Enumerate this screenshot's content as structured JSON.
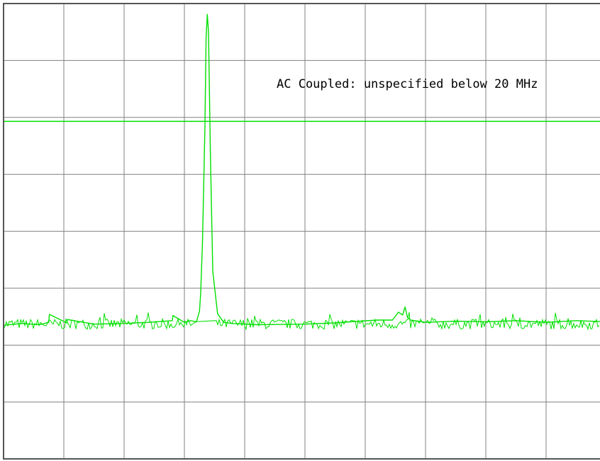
{
  "chart_data": {
    "type": "line",
    "title": "",
    "xlabel": "",
    "ylabel": "",
    "grid": true,
    "grid_divisions": {
      "x": 10,
      "y": 8
    },
    "xlim": [
      0,
      10
    ],
    "ylim": [
      0,
      8
    ],
    "annotation": "AC Coupled: unspecified below 20 MHz",
    "reference_line": {
      "y": 5.93,
      "color": "#00e000"
    },
    "noise_floor": 2.37,
    "noise_amplitude": 0.09,
    "trace_color": "#00e000",
    "grid_color": "#808080",
    "frame_color": "#555555",
    "series": [
      {
        "color": "#00e000",
        "x": [
          0,
          0.3,
          0.6,
          0.75,
          0.76,
          1.05,
          1.06,
          1.5,
          2.0,
          2.4,
          2.8,
          2.81,
          3.0,
          3.1,
          3.2,
          3.25,
          3.27,
          3.3,
          3.34,
          3.36,
          3.38,
          3.4,
          3.43,
          3.47,
          3.55,
          3.65,
          3.8,
          4.2,
          5.0,
          5.5,
          5.9,
          6.2,
          6.45,
          6.55,
          6.62,
          6.66,
          6.7,
          6.75,
          7.0,
          7.5,
          8.0,
          8.5,
          9.0,
          9.5,
          10.0
        ],
        "y": [
          2.35,
          2.38,
          2.36,
          2.4,
          2.54,
          2.39,
          2.45,
          2.37,
          2.38,
          2.4,
          2.43,
          2.52,
          2.4,
          2.43,
          2.41,
          2.6,
          2.9,
          3.8,
          5.8,
          7.4,
          7.81,
          7.5,
          5.4,
          3.3,
          2.55,
          2.4,
          2.38,
          2.36,
          2.37,
          2.39,
          2.42,
          2.44,
          2.44,
          2.58,
          2.53,
          2.67,
          2.49,
          2.44,
          2.4,
          2.42,
          2.41,
          2.43,
          2.4,
          2.43,
          2.41
        ]
      }
    ]
  }
}
